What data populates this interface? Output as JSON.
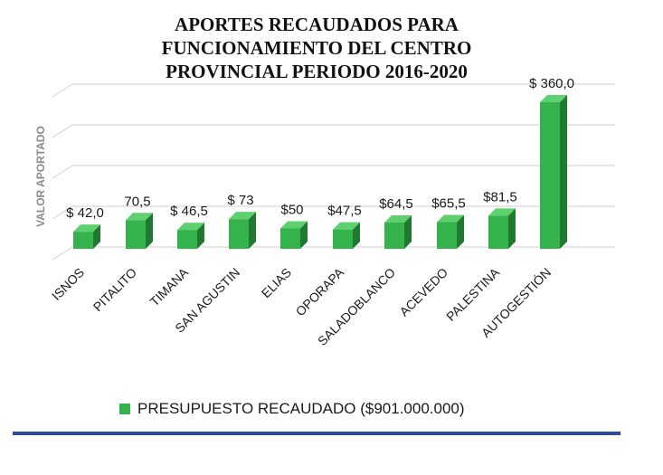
{
  "chart_data": {
    "type": "bar",
    "title_lines": [
      "APORTES RECAUDADOS PARA",
      "FUNCIONAMIENTO DEL CENTRO",
      "PROVINCIAL PERIODO 2016-2020"
    ],
    "ylabel": "VALOR APORTADO",
    "categories": [
      "ISNOS",
      "PITALITO",
      "TIMANA",
      "SAN AGUSTIN",
      "ELIAS",
      "OPORAPA",
      "SALADOBLANCO",
      "ACEVEDO",
      "PALESTINA",
      "AUTOGESTIÓN"
    ],
    "series": [
      {
        "name": "PRESUPUESTO RECAUDADO ($901.000.000)",
        "values": [
          42.0,
          70.5,
          46.5,
          73,
          50,
          47.5,
          64.5,
          65.5,
          81.5,
          360.0
        ],
        "data_labels": [
          "$ 42,0",
          "70,5",
          "$ 46,5",
          "$ 73",
          "$50",
          "$47,5",
          "$64,5",
          "$65,5",
          "$81,5",
          "$ 360,0"
        ]
      }
    ],
    "ylim": [
      0,
      400
    ],
    "grid": true,
    "legend_position": "bottom",
    "colors": {
      "bar": "#34b24c",
      "bar_side": "#1f7a2f",
      "bar_top": "#5fd06f",
      "grid": "#cfcfcf",
      "rule": "#2c4aa0"
    }
  }
}
